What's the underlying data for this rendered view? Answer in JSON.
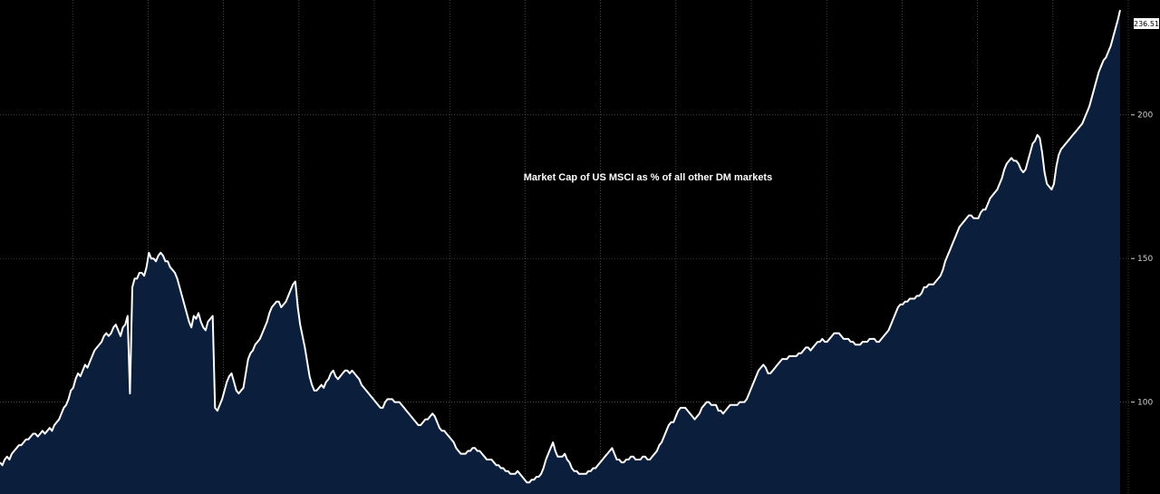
{
  "colors": {
    "background": "#000000",
    "area_fill": "#0b1f3d",
    "line": "#ffffff",
    "grid": "#5a5a5a",
    "tick_text": "#cfcfcf",
    "last_value_box": "#ffffff"
  },
  "chart_data": {
    "type": "area",
    "title": "Market Cap of US MSCI as % of all other DM markets",
    "xlabel": "",
    "ylabel": "",
    "ylim": [
      68,
      240
    ],
    "y_ticks": [
      "100",
      "150",
      "200"
    ],
    "y_axis_side": "right",
    "grid": true,
    "last_value_label": "236.51",
    "series": [
      {
        "values": [
          79,
          78,
          80,
          81,
          80,
          82,
          83,
          84,
          85,
          85,
          86,
          87,
          87,
          88,
          89,
          89,
          88,
          89,
          90,
          89,
          90,
          91,
          90,
          92,
          93,
          94,
          96,
          98,
          99,
          101,
          104,
          105,
          108,
          110,
          109,
          111,
          113,
          112,
          114,
          116,
          118,
          119,
          120,
          121,
          123,
          124,
          123,
          124,
          126,
          127,
          125,
          123,
          126,
          127,
          130,
          103,
          140,
          143,
          143,
          145,
          145,
          144,
          147,
          152,
          150,
          150,
          149,
          151,
          152,
          151,
          149,
          149,
          147,
          146,
          145,
          143,
          140,
          137,
          134,
          131,
          128,
          126,
          130,
          129,
          131,
          128,
          126,
          125,
          128,
          129,
          130,
          98,
          97,
          99,
          101,
          104,
          107,
          109,
          110,
          107,
          104,
          103,
          104,
          105,
          110,
          115,
          117,
          118,
          120,
          121,
          122,
          124,
          126,
          128,
          131,
          133,
          134,
          135,
          135,
          133,
          134,
          135,
          137,
          139,
          141,
          142,
          133,
          127,
          123,
          119,
          114,
          109,
          106,
          104,
          104,
          105,
          106,
          105,
          107,
          108,
          110,
          111,
          109,
          108,
          109,
          110,
          111,
          111,
          110,
          111,
          110,
          109,
          108,
          106,
          105,
          104,
          103,
          102,
          101,
          100,
          99,
          98,
          98,
          100,
          101,
          101,
          101,
          100,
          100,
          100,
          99,
          98,
          97,
          96,
          95,
          94,
          93,
          92,
          92,
          93,
          94,
          94,
          95,
          96,
          95,
          93,
          91,
          90,
          90,
          89,
          88,
          87,
          86,
          84,
          83,
          82,
          82,
          82,
          83,
          83,
          84,
          84,
          83,
          83,
          82,
          81,
          80,
          80,
          80,
          79,
          78,
          78,
          77,
          77,
          76,
          76,
          75,
          75,
          75,
          76,
          75,
          74,
          73,
          72,
          72,
          73,
          73,
          74,
          74,
          75,
          77,
          80,
          82,
          84,
          86,
          83,
          81,
          81,
          81,
          82,
          80,
          79,
          77,
          76,
          76,
          75,
          75,
          75,
          75,
          76,
          76,
          77,
          77,
          78,
          79,
          80,
          81,
          82,
          83,
          84,
          82,
          80,
          80,
          79,
          79,
          80,
          80,
          81,
          81,
          80,
          80,
          80,
          81,
          81,
          80,
          80,
          81,
          82,
          83,
          85,
          86,
          88,
          90,
          92,
          93,
          93,
          95,
          97,
          98,
          98,
          98,
          97,
          96,
          95,
          94,
          95,
          96,
          98,
          99,
          100,
          100,
          99,
          99,
          99,
          97,
          97,
          96,
          97,
          98,
          99,
          99,
          99,
          99,
          100,
          100,
          100,
          101,
          103,
          105,
          107,
          109,
          111,
          112,
          113,
          112,
          110,
          110,
          111,
          112,
          113,
          114,
          115,
          115,
          115,
          116,
          116,
          116,
          116,
          117,
          117,
          118,
          119,
          119,
          118,
          119,
          120,
          121,
          121,
          122,
          121,
          121,
          122,
          123,
          124,
          124,
          124,
          123,
          122,
          122,
          122,
          121,
          121,
          120,
          120,
          120,
          121,
          121,
          121,
          122,
          122,
          122,
          121,
          121,
          122,
          123,
          124,
          125,
          127,
          129,
          131,
          133,
          134,
          134,
          135,
          135,
          136,
          136,
          136,
          137,
          137,
          138,
          140,
          140,
          141,
          141,
          141,
          142,
          143,
          144,
          146,
          149,
          151,
          153,
          155,
          157,
          159,
          161,
          162,
          163,
          164,
          165,
          165,
          164,
          164,
          164,
          166,
          167,
          167,
          169,
          171,
          172,
          173,
          174,
          176,
          178,
          181,
          183,
          184,
          185,
          184,
          184,
          183,
          181,
          180,
          181,
          184,
          187,
          190,
          191,
          193,
          192,
          187,
          180,
          176,
          175,
          174,
          176,
          182,
          186,
          188,
          189,
          190,
          191,
          192,
          193,
          194,
          195,
          196,
          197,
          199,
          201,
          203,
          206,
          209,
          212,
          215,
          217,
          219,
          220,
          222,
          224,
          227,
          230,
          233,
          236.51
        ]
      }
    ]
  }
}
